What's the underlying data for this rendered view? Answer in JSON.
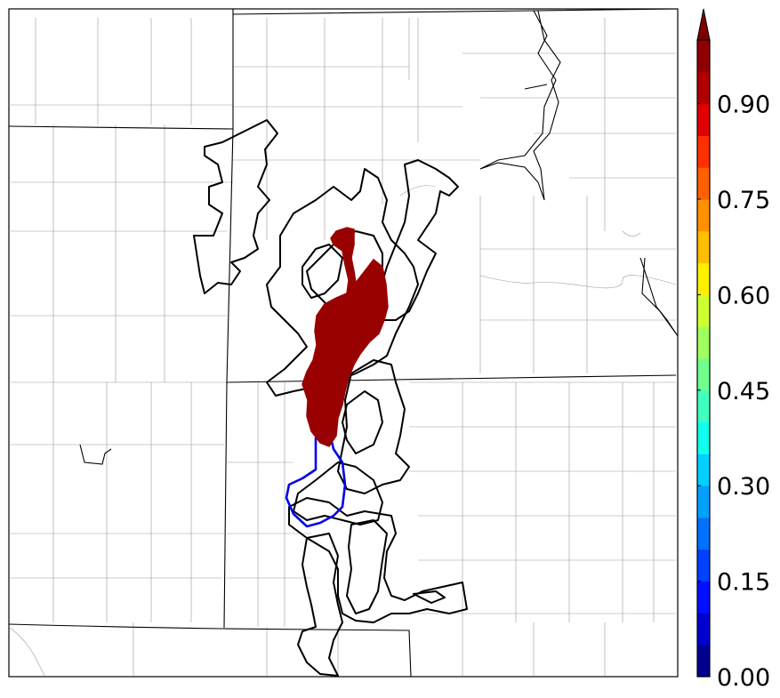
{
  "chart_data": {
    "type": "heatmap",
    "title": "",
    "colorbar": {
      "ticks": [
        "0.00",
        "0.15",
        "0.30",
        "0.45",
        "0.60",
        "0.75",
        "0.90"
      ],
      "tick_values": [
        0.0,
        0.15,
        0.3,
        0.45,
        0.6,
        0.75,
        0.9
      ],
      "range": [
        0.0,
        1.0
      ],
      "extend": "max",
      "levels": [
        0.0,
        0.05,
        0.1,
        0.15,
        0.2,
        0.25,
        0.3,
        0.35,
        0.4,
        0.45,
        0.5,
        0.55,
        0.6,
        0.65,
        0.7,
        0.75,
        0.8,
        0.85,
        0.9,
        0.95,
        1.0
      ],
      "colors": [
        "#00008f",
        "#0000d0",
        "#0010ff",
        "#0040ff",
        "#0070ff",
        "#00a0ff",
        "#00d0ff",
        "#10ffef",
        "#40ffbf",
        "#70ff8f",
        "#a0ff5f",
        "#d0ff2f",
        "#ffef00",
        "#ffbf00",
        "#ff9000",
        "#ff6000",
        "#ff3000",
        "#e00000",
        "#b00000",
        "#900000"
      ],
      "extend_color": "#800000"
    },
    "filled_region": {
      "value": 0.95,
      "color": "#990000"
    },
    "contours": [
      {
        "color": "#0000ee",
        "count": 1
      },
      {
        "color": "#000000",
        "count": 12
      }
    ]
  }
}
